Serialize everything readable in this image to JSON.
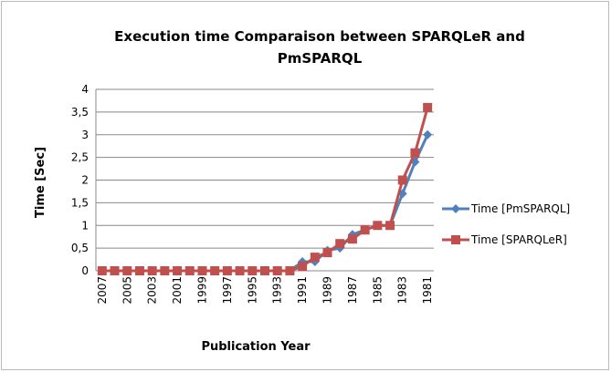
{
  "chart_data": {
    "type": "line",
    "title": "Execution time Comparaison between SPARQLeR and PmSPARQL",
    "xlabel": "Publication Year",
    "ylabel": "Time [Sec]",
    "categories": [
      "2007",
      null,
      "2005",
      null,
      "2003",
      null,
      "2001",
      null,
      "1999",
      null,
      "1997",
      null,
      "1995",
      null,
      "1993",
      null,
      "1991",
      null,
      "1989",
      null,
      "1987",
      null,
      "1985",
      null,
      "1983",
      null,
      "1981"
    ],
    "series": [
      {
        "name": "Time [PmSPARQL]",
        "color": "#4f81bd",
        "marker": "diamond",
        "values": [
          0,
          0,
          0,
          0,
          0,
          0,
          0,
          0,
          0,
          0,
          0,
          0,
          0,
          0,
          0,
          0,
          0.2,
          0.2,
          0.45,
          0.5,
          0.8,
          0.9,
          1.0,
          1.0,
          1.7,
          2.4,
          3.0
        ]
      },
      {
        "name": "Time [SPARQLeR]",
        "color": "#c0504d",
        "marker": "square",
        "values": [
          0,
          0,
          0,
          0,
          0,
          0,
          0,
          0,
          0,
          0,
          0,
          0,
          0,
          0,
          0,
          0,
          0.1,
          0.3,
          0.4,
          0.6,
          0.7,
          0.9,
          1.0,
          1.0,
          2.0,
          2.6,
          3.6
        ]
      }
    ],
    "ylim": [
      0,
      4
    ],
    "yticks": [
      0,
      {
        "value": 0.5,
        "label": "0,5"
      },
      1,
      {
        "value": 1.5,
        "label": "1,5"
      },
      2,
      {
        "value": 2.5,
        "label": "2,5"
      },
      3,
      {
        "value": 3.5,
        "label": "3,5"
      },
      4
    ],
    "grid": true,
    "legend": "right"
  }
}
